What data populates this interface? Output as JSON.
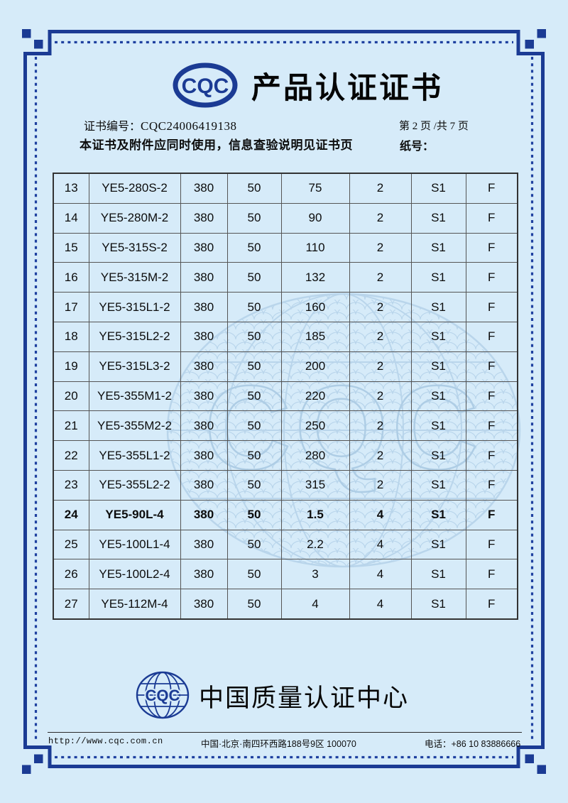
{
  "page": {
    "background_color": "#d6ebf9",
    "accent_color": "#1b3b94",
    "table_line_color": "#555555",
    "text_color": "#0c0c0c"
  },
  "header": {
    "logo_text": "CQC",
    "logo_icon": "cqc-oval-logo",
    "title": "产品认证证书"
  },
  "meta": {
    "cert_no_label": "证书编号：",
    "cert_no": "CQC24006419138",
    "page_info": "第 2 页 /共 7 页",
    "notice": "本证书及附件应同时使用，信息查验说明见证书页",
    "paper_no_label": "纸号："
  },
  "table": {
    "columns": [
      "no",
      "model",
      "voltage",
      "frequency",
      "power",
      "poles",
      "duty",
      "insulation"
    ],
    "rows": [
      {
        "no": "13",
        "model": "YE5-280S-2",
        "voltage": "380",
        "frequency": "50",
        "power": "75",
        "poles": "2",
        "duty": "S1",
        "insulation": "F",
        "bold": false
      },
      {
        "no": "14",
        "model": "YE5-280M-2",
        "voltage": "380",
        "frequency": "50",
        "power": "90",
        "poles": "2",
        "duty": "S1",
        "insulation": "F",
        "bold": false
      },
      {
        "no": "15",
        "model": "YE5-315S-2",
        "voltage": "380",
        "frequency": "50",
        "power": "110",
        "poles": "2",
        "duty": "S1",
        "insulation": "F",
        "bold": false
      },
      {
        "no": "16",
        "model": "YE5-315M-2",
        "voltage": "380",
        "frequency": "50",
        "power": "132",
        "poles": "2",
        "duty": "S1",
        "insulation": "F",
        "bold": false
      },
      {
        "no": "17",
        "model": "YE5-315L1-2",
        "voltage": "380",
        "frequency": "50",
        "power": "160",
        "poles": "2",
        "duty": "S1",
        "insulation": "F",
        "bold": false
      },
      {
        "no": "18",
        "model": "YE5-315L2-2",
        "voltage": "380",
        "frequency": "50",
        "power": "185",
        "poles": "2",
        "duty": "S1",
        "insulation": "F",
        "bold": false
      },
      {
        "no": "19",
        "model": "YE5-315L3-2",
        "voltage": "380",
        "frequency": "50",
        "power": "200",
        "poles": "2",
        "duty": "S1",
        "insulation": "F",
        "bold": false
      },
      {
        "no": "20",
        "model": "YE5-355M1-2",
        "voltage": "380",
        "frequency": "50",
        "power": "220",
        "poles": "2",
        "duty": "S1",
        "insulation": "F",
        "bold": false
      },
      {
        "no": "21",
        "model": "YE5-355M2-2",
        "voltage": "380",
        "frequency": "50",
        "power": "250",
        "poles": "2",
        "duty": "S1",
        "insulation": "F",
        "bold": false
      },
      {
        "no": "22",
        "model": "YE5-355L1-2",
        "voltage": "380",
        "frequency": "50",
        "power": "280",
        "poles": "2",
        "duty": "S1",
        "insulation": "F",
        "bold": false
      },
      {
        "no": "23",
        "model": "YE5-355L2-2",
        "voltage": "380",
        "frequency": "50",
        "power": "315",
        "poles": "2",
        "duty": "S1",
        "insulation": "F",
        "bold": false
      },
      {
        "no": "24",
        "model": "YE5-90L-4",
        "voltage": "380",
        "frequency": "50",
        "power": "1.5",
        "poles": "4",
        "duty": "S1",
        "insulation": "F",
        "bold": true
      },
      {
        "no": "25",
        "model": "YE5-100L1-4",
        "voltage": "380",
        "frequency": "50",
        "power": "2.2",
        "poles": "4",
        "duty": "S1",
        "insulation": "F",
        "bold": false
      },
      {
        "no": "26",
        "model": "YE5-100L2-4",
        "voltage": "380",
        "frequency": "50",
        "power": "3",
        "poles": "4",
        "duty": "S1",
        "insulation": "F",
        "bold": false
      },
      {
        "no": "27",
        "model": "YE5-112M-4",
        "voltage": "380",
        "frequency": "50",
        "power": "4",
        "poles": "4",
        "duty": "S1",
        "insulation": "F",
        "bold": false
      }
    ]
  },
  "watermark": {
    "icon": "cqc-globe-guilloche-watermark",
    "text": "CQC"
  },
  "org": {
    "logo_text": "CQC",
    "logo_icon": "cqc-globe-logo",
    "name": "中国质量认证中心"
  },
  "footer": {
    "url": "http://www.cqc.com.cn",
    "address": "中国·北京·南四环西路188号9区  100070",
    "phone": "电话：+86 10 83886666"
  }
}
